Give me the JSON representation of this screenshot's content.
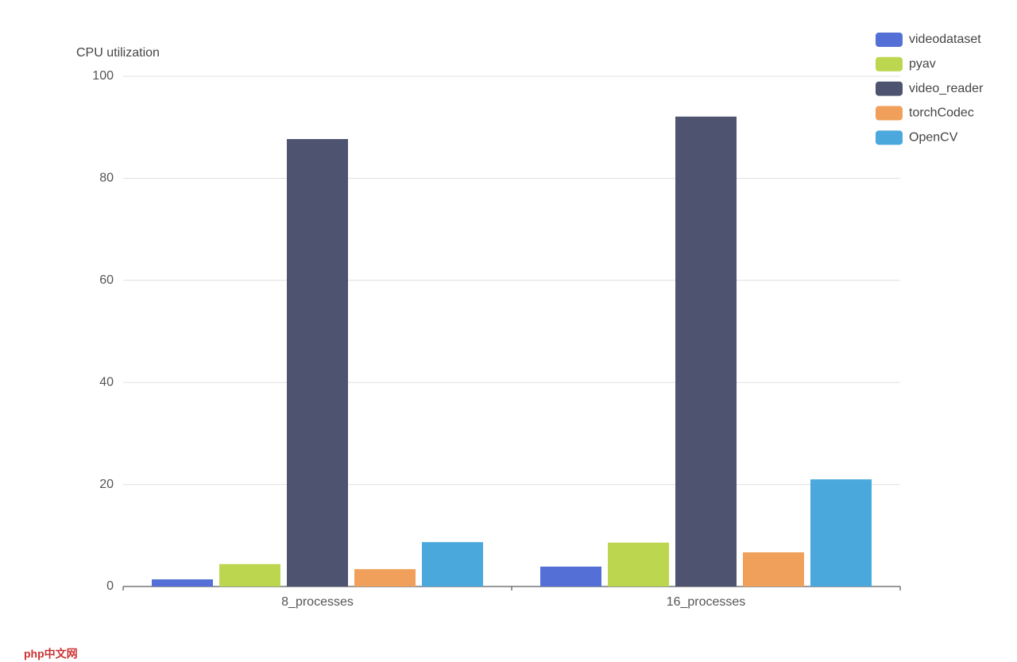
{
  "chart_data": {
    "type": "bar",
    "y_label": "CPU utilization",
    "categories": [
      "8_processes",
      "16_processes"
    ],
    "series": [
      {
        "name": "videodataset",
        "color": "#5470d6",
        "values": [
          1.4,
          3.9
        ]
      },
      {
        "name": "pyav",
        "color": "#bdd650",
        "values": [
          4.4,
          8.6
        ]
      },
      {
        "name": "video_reader",
        "color": "#4e536f",
        "values": [
          87.7,
          92.1
        ]
      },
      {
        "name": "torchCodec",
        "color": "#f0a05a",
        "values": [
          3.4,
          6.7
        ]
      },
      {
        "name": "OpenCV",
        "color": "#4ba8dc",
        "values": [
          8.7,
          21.0
        ]
      }
    ],
    "ylim": [
      0,
      100
    ],
    "yticks": [
      0,
      20,
      40,
      60,
      80,
      100
    ],
    "grid": true,
    "legend": "top-right"
  },
  "watermark": "php中文网"
}
